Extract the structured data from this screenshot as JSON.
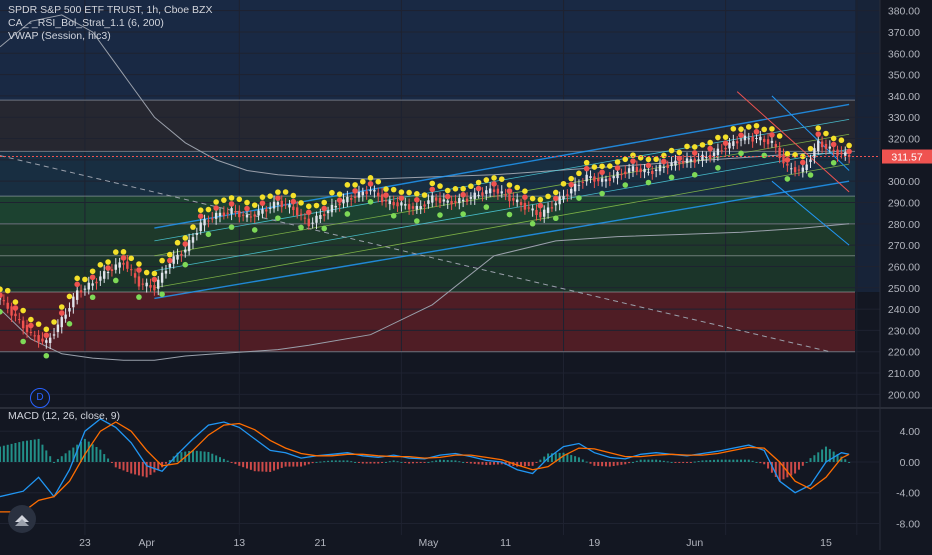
{
  "title": "SPDR S&P 500 ETF TRUST, 1h, Cboe BZX",
  "indicators": [
    "CA_-_RSI_Bol_Strat_1.1 (6, 200)",
    "VWAP (Session, hlc3)"
  ],
  "macd_label": "MACD (12, 26, close, 9)",
  "d_badge": "D",
  "last_price": "311.57",
  "colors": {
    "background": "#131722",
    "grid": "#1e2230",
    "up": "#26a69a",
    "down": "#ef5350",
    "price_tag": "#ef5350",
    "macd_line": "#2196f3",
    "signal_line": "#ff6d00",
    "dot_yellow": "#f4e02a",
    "dot_red": "#ef5350",
    "dot_green": "#7ed957",
    "channel": "#2196f3"
  },
  "chart_data": [
    {
      "type": "candlestick",
      "title": "SPDR S&P 500 ETF TRUST, 1h, Cboe BZX",
      "x_tick_labels": [
        "23",
        "Apr",
        "13",
        "21",
        "May",
        "11",
        "19",
        "Jun",
        "15"
      ],
      "y_ticks": [
        200,
        210,
        220,
        230,
        240,
        250,
        260,
        270,
        280,
        290,
        300,
        310,
        320,
        330,
        340,
        350,
        360,
        370,
        380
      ],
      "y_tick_labels": [
        "200.00",
        "210.00",
        "220.00",
        "230.00",
        "240.00",
        "250.00",
        "260.00",
        "270.00",
        "280.00",
        "290.00",
        "300.00",
        "310.00",
        "320.00",
        "330.00",
        "340.00",
        "350.00",
        "360.00",
        "370.00",
        "380.00"
      ],
      "ylim": [
        195,
        385
      ],
      "last_price": 311.57,
      "horizontal_levels": [
        220,
        248,
        265,
        280,
        293,
        314,
        338
      ],
      "zones": [
        {
          "from": 220,
          "to": 248,
          "color": "#5a1f26"
        },
        {
          "from": 248,
          "to": 265,
          "color": "#1d3a2a"
        },
        {
          "from": 265,
          "to": 280,
          "color": "#21402c"
        },
        {
          "from": 280,
          "to": 293,
          "color": "#1f4a33"
        },
        {
          "from": 293,
          "to": 314,
          "color": "#1a3346"
        },
        {
          "from": 314,
          "to": 338,
          "color": "#2a2a33"
        },
        {
          "from": 338,
          "to": 385,
          "color": "#1b2d4a"
        }
      ],
      "trend": [
        [
          0,
          245
        ],
        [
          4,
          236
        ],
        [
          8,
          228
        ],
        [
          12,
          224
        ],
        [
          16,
          235
        ],
        [
          20,
          248
        ],
        [
          24,
          252
        ],
        [
          28,
          258
        ],
        [
          32,
          262
        ],
        [
          36,
          252
        ],
        [
          40,
          250
        ],
        [
          44,
          262
        ],
        [
          48,
          268
        ],
        [
          52,
          280
        ],
        [
          56,
          284
        ],
        [
          60,
          286
        ],
        [
          64,
          283
        ],
        [
          68,
          286
        ],
        [
          72,
          290
        ],
        [
          76,
          287
        ],
        [
          80,
          280
        ],
        [
          84,
          285
        ],
        [
          88,
          290
        ],
        [
          92,
          293
        ],
        [
          96,
          296
        ],
        [
          100,
          290
        ],
        [
          104,
          289
        ],
        [
          108,
          287
        ],
        [
          112,
          292
        ],
        [
          116,
          290
        ],
        [
          120,
          291
        ],
        [
          124,
          294
        ],
        [
          128,
          296
        ],
        [
          132,
          292
        ],
        [
          136,
          288
        ],
        [
          140,
          284
        ],
        [
          144,
          290
        ],
        [
          148,
          296
        ],
        [
          152,
          302
        ],
        [
          156,
          300
        ],
        [
          160,
          303
        ],
        [
          164,
          306
        ],
        [
          168,
          304
        ],
        [
          172,
          307
        ],
        [
          176,
          309
        ],
        [
          180,
          310
        ],
        [
          184,
          312
        ],
        [
          188,
          316
        ],
        [
          192,
          320
        ],
        [
          196,
          320
        ],
        [
          200,
          318
        ],
        [
          204,
          306
        ],
        [
          208,
          305
        ],
        [
          212,
          318
        ],
        [
          216,
          314
        ],
        [
          220,
          311.57
        ]
      ],
      "vwap_upper": [
        [
          0,
          363
        ],
        [
          8,
          375
        ],
        [
          16,
          378
        ],
        [
          24,
          370
        ],
        [
          32,
          350
        ],
        [
          40,
          330
        ],
        [
          48,
          318
        ],
        [
          56,
          310
        ],
        [
          64,
          305
        ],
        [
          72,
          303
        ],
        [
          80,
          302
        ],
        [
          96,
          301
        ],
        [
          112,
          302
        ],
        [
          128,
          303
        ],
        [
          144,
          305
        ],
        [
          160,
          307
        ],
        [
          176,
          309
        ],
        [
          192,
          311
        ],
        [
          208,
          313
        ],
        [
          220,
          313
        ]
      ],
      "vwap_lower": [
        [
          0,
          240
        ],
        [
          8,
          226
        ],
        [
          16,
          219
        ],
        [
          24,
          217
        ],
        [
          32,
          216
        ],
        [
          40,
          216
        ],
        [
          48,
          218
        ],
        [
          56,
          219
        ],
        [
          64,
          220
        ],
        [
          72,
          221
        ],
        [
          80,
          223
        ],
        [
          96,
          228
        ],
        [
          112,
          242
        ],
        [
          128,
          265
        ],
        [
          144,
          272
        ],
        [
          160,
          274
        ],
        [
          176,
          275
        ],
        [
          192,
          276
        ],
        [
          208,
          278
        ],
        [
          220,
          280
        ]
      ],
      "channel": {
        "start_x": 40,
        "end_x": 220,
        "lines_start": [
          245,
          250,
          258,
          265,
          272,
          278
        ],
        "lines_end": [
          300,
          308,
          315,
          322,
          329,
          336
        ]
      },
      "down_channel": {
        "start_x": 200,
        "end_x": 220,
        "upper": [
          340,
          305
        ],
        "lower": [
          300,
          270
        ]
      },
      "dashed_line": {
        "start": [
          0,
          312
        ],
        "end": [
          215,
          220
        ]
      },
      "red_diagonal": {
        "start": [
          191,
          342
        ],
        "end": [
          220,
          295
        ]
      },
      "marker_rule": "yellow dots above the highs, red dots below yellow, green dots below the lows"
    },
    {
      "type": "line",
      "title": "MACD (12, 26, close, 9)",
      "y_ticks": [
        -8,
        -4,
        0,
        4
      ],
      "y_tick_labels": [
        "-8.00",
        "-4.00",
        "0.00",
        "4.00"
      ],
      "ylim": [
        -9.5,
        6.5
      ],
      "series": [
        {
          "name": "MACD",
          "values": [
            [
              0,
              -4.5
            ],
            [
              6,
              -3.8
            ],
            [
              10,
              -2.0
            ],
            [
              14,
              -4.5
            ],
            [
              18,
              -1.0
            ],
            [
              22,
              4.0
            ],
            [
              26,
              5.6
            ],
            [
              30,
              4.5
            ],
            [
              34,
              2.5
            ],
            [
              38,
              -0.5
            ],
            [
              42,
              -1.2
            ],
            [
              46,
              1.0
            ],
            [
              50,
              3.0
            ],
            [
              54,
              4.8
            ],
            [
              58,
              5.2
            ],
            [
              62,
              4.5
            ],
            [
              66,
              3.0
            ],
            [
              70,
              1.5
            ],
            [
              74,
              1.2
            ],
            [
              78,
              0.5
            ],
            [
              82,
              0.8
            ],
            [
              86,
              1.0
            ],
            [
              90,
              1.2
            ],
            [
              94,
              0.8
            ],
            [
              98,
              0.6
            ],
            [
              102,
              0.9
            ],
            [
              106,
              0.5
            ],
            [
              110,
              0.4
            ],
            [
              114,
              0.9
            ],
            [
              118,
              1.1
            ],
            [
              122,
              0.7
            ],
            [
              126,
              0.2
            ],
            [
              130,
              0.0
            ],
            [
              134,
              -1.0
            ],
            [
              138,
              -1.5
            ],
            [
              142,
              0.5
            ],
            [
              146,
              2.0
            ],
            [
              150,
              2.4
            ],
            [
              154,
              1.2
            ],
            [
              158,
              0.6
            ],
            [
              162,
              0.4
            ],
            [
              166,
              1.0
            ],
            [
              170,
              1.2
            ],
            [
              174,
              1.0
            ],
            [
              178,
              0.8
            ],
            [
              182,
              1.1
            ],
            [
              186,
              1.4
            ],
            [
              190,
              1.8
            ],
            [
              194,
              2.2
            ],
            [
              198,
              1.5
            ],
            [
              202,
              -2.5
            ],
            [
              206,
              -4.0
            ],
            [
              210,
              -3.0
            ],
            [
              214,
              0.0
            ],
            [
              218,
              1.2
            ],
            [
              220,
              1.0
            ]
          ]
        },
        {
          "name": "Signal",
          "values": [
            [
              0,
              -6.5
            ],
            [
              6,
              -6.5
            ],
            [
              10,
              -5.0
            ],
            [
              14,
              -4.5
            ],
            [
              18,
              -2.5
            ],
            [
              22,
              1.0
            ],
            [
              26,
              4.0
            ],
            [
              30,
              5.2
            ],
            [
              34,
              4.0
            ],
            [
              38,
              1.5
            ],
            [
              42,
              -0.5
            ],
            [
              46,
              -0.2
            ],
            [
              50,
              1.5
            ],
            [
              54,
              3.5
            ],
            [
              58,
              4.8
            ],
            [
              62,
              5.0
            ],
            [
              66,
              4.2
            ],
            [
              70,
              2.8
            ],
            [
              74,
              1.8
            ],
            [
              78,
              1.1
            ],
            [
              82,
              0.8
            ],
            [
              86,
              0.8
            ],
            [
              90,
              1.0
            ],
            [
              94,
              1.0
            ],
            [
              98,
              0.8
            ],
            [
              102,
              0.7
            ],
            [
              106,
              0.7
            ],
            [
              110,
              0.5
            ],
            [
              114,
              0.6
            ],
            [
              118,
              0.9
            ],
            [
              122,
              0.9
            ],
            [
              126,
              0.6
            ],
            [
              130,
              0.3
            ],
            [
              134,
              -0.4
            ],
            [
              138,
              -1.0
            ],
            [
              142,
              -0.6
            ],
            [
              146,
              0.8
            ],
            [
              150,
              1.8
            ],
            [
              154,
              1.7
            ],
            [
              158,
              1.2
            ],
            [
              162,
              0.7
            ],
            [
              166,
              0.7
            ],
            [
              170,
              0.9
            ],
            [
              174,
              1.0
            ],
            [
              178,
              0.9
            ],
            [
              182,
              0.9
            ],
            [
              186,
              1.1
            ],
            [
              190,
              1.5
            ],
            [
              194,
              1.9
            ],
            [
              198,
              1.8
            ],
            [
              202,
              0.0
            ],
            [
              206,
              -2.5
            ],
            [
              210,
              -3.5
            ],
            [
              214,
              -2.0
            ],
            [
              218,
              0.5
            ],
            [
              220,
              1.0
            ]
          ]
        }
      ]
    }
  ]
}
